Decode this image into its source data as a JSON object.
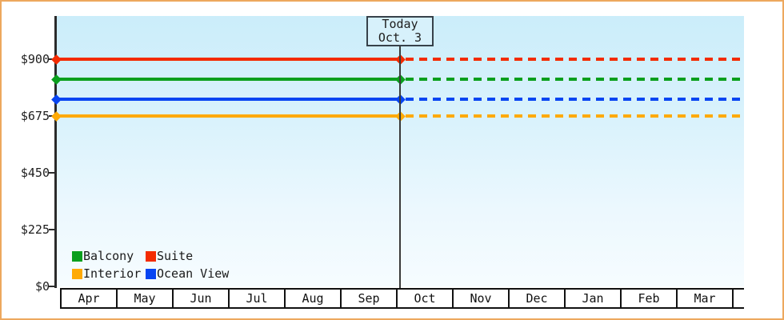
{
  "page": {
    "border_color": "#eda85e",
    "background_color": "#ffffff",
    "plot_background_top": "#cbedfa",
    "plot_background_bottom": "#f6fcff"
  },
  "chart_data": {
    "type": "line",
    "title": "",
    "x_axis": {
      "months": [
        "Apr",
        "May",
        "Jun",
        "Jul",
        "Aug",
        "Sep",
        "Oct",
        "Nov",
        "Dec",
        "Jan",
        "Feb",
        "Mar"
      ]
    },
    "y_axis": {
      "ticks": [
        {
          "label": "$900",
          "value": 900
        },
        {
          "label": "$675",
          "value": 675
        },
        {
          "label": "$450",
          "value": 450
        },
        {
          "label": "$225",
          "value": 225
        },
        {
          "label": "$0",
          "value": 0
        }
      ],
      "range": [
        0,
        900
      ],
      "grid": false
    },
    "today": {
      "title": "Today",
      "date": "Oct. 3"
    },
    "series": [
      {
        "name": "Suite",
        "color": "#f32b00",
        "value": 900,
        "style_before_today": "solid",
        "style_after_today": "dashed"
      },
      {
        "name": "Balcony",
        "color": "#0a9f1d",
        "value": 820,
        "style_before_today": "solid",
        "style_after_today": "dashed"
      },
      {
        "name": "Ocean View",
        "color": "#0845f2",
        "value": 740,
        "style_before_today": "solid",
        "style_after_today": "dashed"
      },
      {
        "name": "Interior",
        "color": "#ffaa05",
        "value": 675,
        "style_before_today": "solid",
        "style_after_today": "dashed"
      }
    ],
    "legend": {
      "position": "bottom-left-inside",
      "items": [
        {
          "label": "Balcony",
          "color": "#0a9f1d"
        },
        {
          "label": "Suite",
          "color": "#f32b00"
        },
        {
          "label": "Interior",
          "color": "#ffaa05"
        },
        {
          "label": "Ocean View",
          "color": "#0845f2"
        }
      ]
    }
  }
}
